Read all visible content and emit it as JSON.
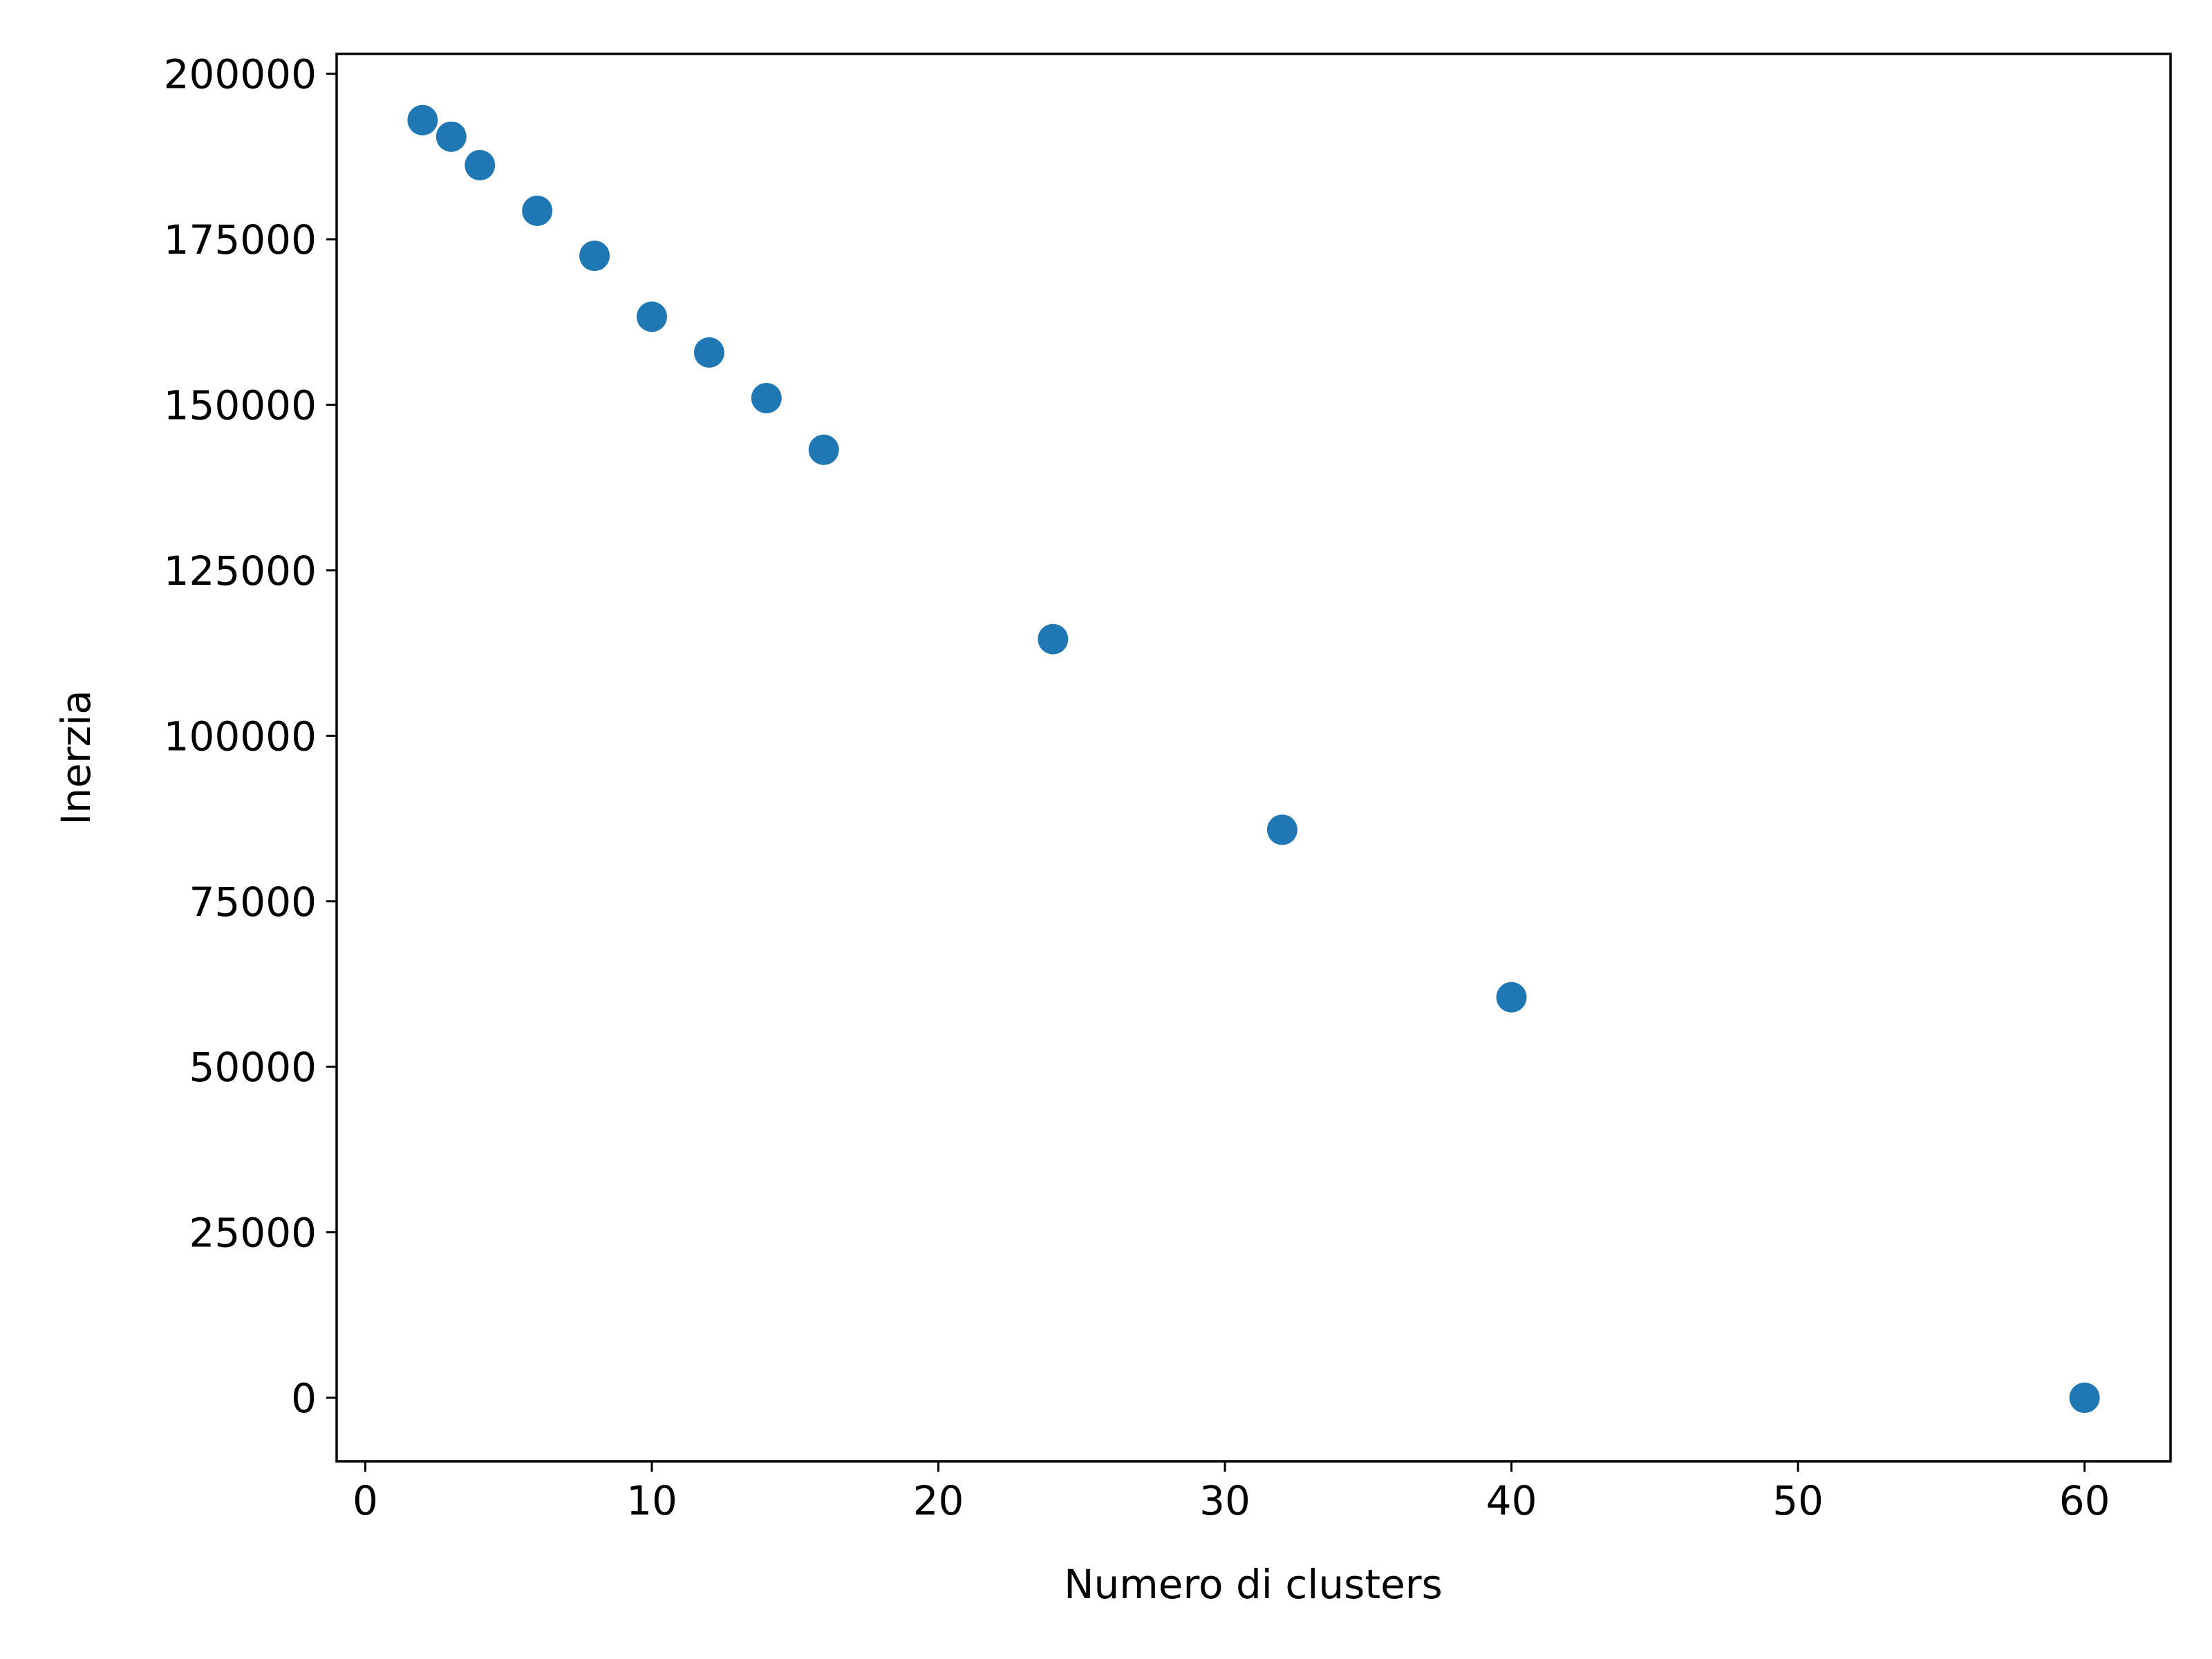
{
  "chart_data": {
    "type": "scatter",
    "title": "",
    "xlabel": "Numero di clusters",
    "ylabel": "Inerzia",
    "xlim": [
      -1,
      63
    ],
    "ylim": [
      -9600,
      203000
    ],
    "x_ticks": [
      0,
      10,
      20,
      30,
      40,
      50,
      60
    ],
    "y_ticks": [
      0,
      25000,
      50000,
      75000,
      100000,
      125000,
      150000,
      175000,
      200000
    ],
    "grid": false,
    "legend": "none",
    "colors": {
      "marker": "#1f77b4",
      "axes": "#000000",
      "background": "#ffffff"
    },
    "series": [
      {
        "x": [
          2,
          3,
          4,
          6,
          8,
          10,
          12,
          14,
          16,
          24,
          32,
          40,
          60
        ],
        "y": [
          193000,
          190500,
          186200,
          179300,
          172500,
          163300,
          157900,
          151000,
          143200,
          114600,
          85800,
          60500,
          0
        ]
      }
    ]
  }
}
